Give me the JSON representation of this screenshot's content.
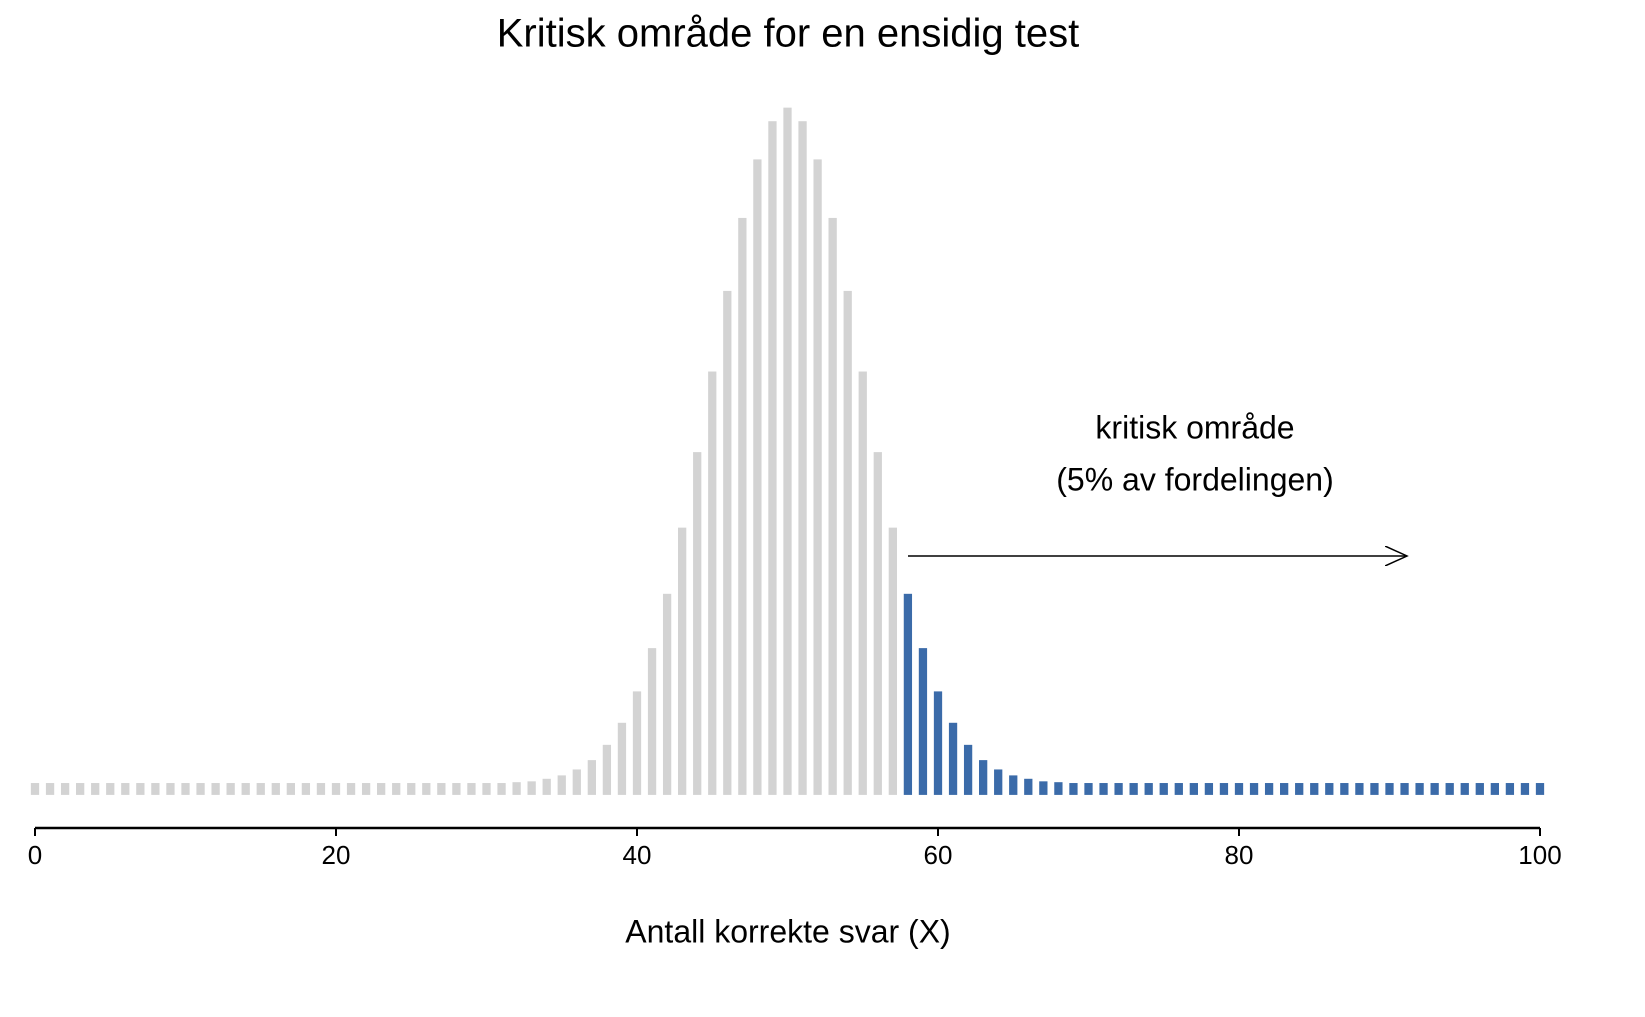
{
  "chart_data": {
    "type": "bar",
    "title": "Kritisk område for en ensidig test",
    "x_label": "Antall korrekte svar (X)",
    "annotation": [
      "kritisk område",
      "(5% av fordelingen)"
    ],
    "x": [
      0,
      1,
      2,
      3,
      4,
      5,
      6,
      7,
      8,
      9,
      10,
      11,
      12,
      13,
      14,
      15,
      16,
      17,
      18,
      19,
      20,
      21,
      22,
      23,
      24,
      25,
      26,
      27,
      28,
      29,
      30,
      31,
      32,
      33,
      34,
      35,
      36,
      37,
      38,
      39,
      40,
      41,
      42,
      43,
      44,
      45,
      46,
      47,
      48,
      49,
      50,
      51,
      52,
      53,
      54,
      55,
      56,
      57,
      58,
      59,
      60,
      61,
      62,
      63,
      64,
      65,
      66,
      67,
      68,
      69,
      70,
      71,
      72,
      73,
      74,
      75,
      76,
      77,
      78,
      79,
      80,
      81,
      82,
      83,
      84,
      85,
      86,
      87,
      88,
      89,
      90,
      91,
      92,
      93,
      94,
      95,
      96,
      97,
      98,
      99,
      100
    ],
    "series": [
      {
        "color": "#d3d3d3",
        "values": [
          0.0014,
          0.0014,
          0.0014,
          0.0014,
          0.0014,
          0.0014,
          0.0014,
          0.0014,
          0.0014,
          0.0014,
          0.0014,
          0.0014,
          0.0014,
          0.0014,
          0.0014,
          0.0014,
          0.0014,
          0.0014,
          0.0014,
          0.0014,
          0.0014,
          0.0014,
          0.0014,
          0.0014,
          0.0014,
          0.0014,
          0.0014,
          0.0014,
          0.0014,
          0.0014,
          0.0014,
          0.0014,
          0.0015,
          0.0016,
          0.0019,
          0.0023,
          0.003,
          0.0041,
          0.0059,
          0.0085,
          0.0122,
          0.0173,
          0.0237,
          0.0315,
          0.0404,
          0.0499,
          0.0594,
          0.068,
          0.0749,
          0.0794,
          0.081,
          0.0794,
          0.0749,
          0.068,
          0.0594,
          0.0499,
          0.0404,
          0.0315,
          null,
          null,
          null,
          null,
          null,
          null,
          null,
          null,
          null,
          null,
          null,
          null,
          null,
          null,
          null,
          null,
          null,
          null,
          null,
          null,
          null,
          null,
          null,
          null,
          null,
          null,
          null,
          null,
          null,
          null,
          null,
          null,
          null,
          null,
          null,
          null,
          null,
          null,
          null,
          null,
          null,
          null,
          null
        ]
      },
      {
        "color": "#3b6ba9",
        "values": [
          null,
          null,
          null,
          null,
          null,
          null,
          null,
          null,
          null,
          null,
          null,
          null,
          null,
          null,
          null,
          null,
          null,
          null,
          null,
          null,
          null,
          null,
          null,
          null,
          null,
          null,
          null,
          null,
          null,
          null,
          null,
          null,
          null,
          null,
          null,
          null,
          null,
          null,
          null,
          null,
          null,
          null,
          null,
          null,
          null,
          null,
          null,
          null,
          null,
          null,
          null,
          null,
          null,
          null,
          null,
          null,
          null,
          null,
          0.0237,
          0.0173,
          0.0122,
          0.0085,
          0.0059,
          0.0041,
          0.003,
          0.0023,
          0.0019,
          0.0016,
          0.0015,
          0.0014,
          0.0014,
          0.0014,
          0.0014,
          0.0014,
          0.0014,
          0.0014,
          0.0014,
          0.0014,
          0.0014,
          0.0014,
          0.0014,
          0.0014,
          0.0014,
          0.0014,
          0.0014,
          0.0014,
          0.0014,
          0.0014,
          0.0014,
          0.0014,
          0.0014,
          0.0014,
          0.0014,
          0.0014,
          0.0014,
          0.0014,
          0.0014,
          0.0014,
          0.0014,
          0.0014,
          0.0014
        ]
      }
    ],
    "xlim": [
      0,
      100
    ],
    "xticks": [
      0,
      20,
      40,
      60,
      80,
      100
    ],
    "ylim": [
      -0.0039,
      0.0819
    ]
  }
}
